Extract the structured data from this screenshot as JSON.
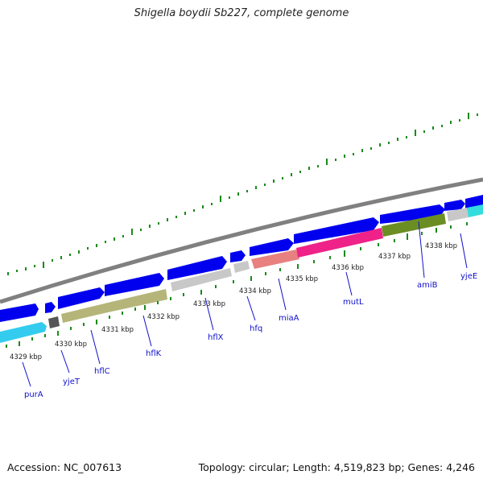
{
  "header": {
    "title": "Shigella boydii Sb227, complete genome"
  },
  "footer": {
    "accession": "Accession: NC_007613",
    "summary": "Topology: circular; Length: 4,519,823 bp; Genes: 4,246"
  },
  "ticks": [
    "4329 kbp",
    "4330 kbp",
    "4331 kbp",
    "4332 kbp",
    "4333 kbp",
    "4334 kbp",
    "4335 kbp",
    "4336 kbp",
    "4337 kbp",
    "4338 kbp"
  ],
  "genes": [
    {
      "name": "purA",
      "color": "#33ccee"
    },
    {
      "name": "yjeT",
      "color": "#555555"
    },
    {
      "name": "hflC",
      "color": "#b5b57a"
    },
    {
      "name": "hflK",
      "color": "#b5b57a"
    },
    {
      "name": "hflX",
      "color": "#c8c8c8"
    },
    {
      "name": "hfq",
      "color": "#c8c8c8"
    },
    {
      "name": "miaA",
      "color": "#e88080"
    },
    {
      "name": "mutL",
      "color": "#ee2288"
    },
    {
      "name": "amiB",
      "color": "#6b8e23"
    },
    {
      "name": "yjeE",
      "color": "#c8c8c8"
    }
  ],
  "colors": {
    "forward_strand": "#0000ee",
    "backbone": "#808080",
    "tick": "#1a8a1a",
    "label": "#1010cc"
  }
}
